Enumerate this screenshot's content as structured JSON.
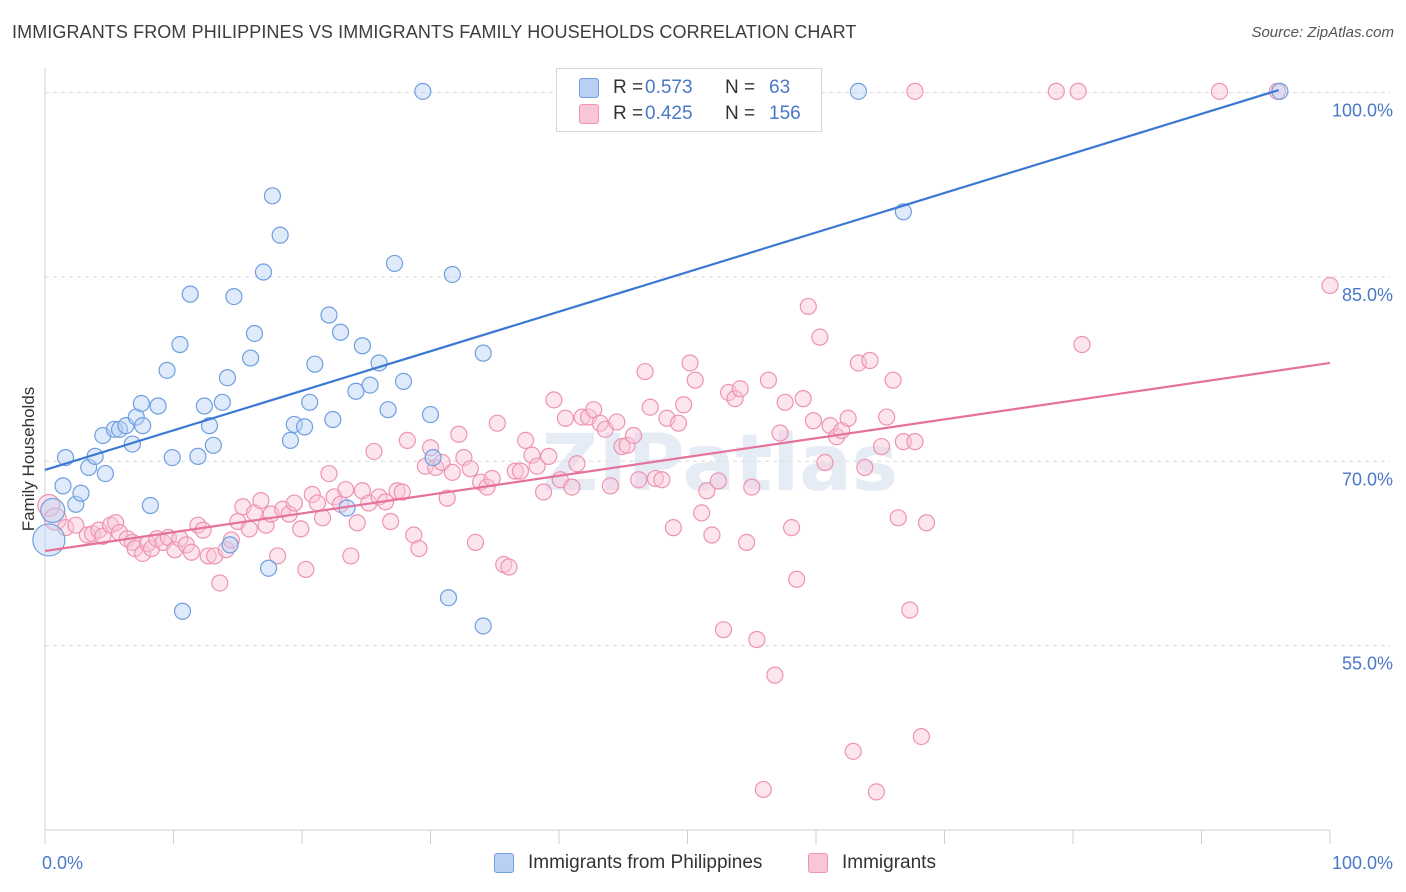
{
  "title": "IMMIGRANTS FROM PHILIPPINES VS IMMIGRANTS FAMILY HOUSEHOLDS CORRELATION CHART",
  "source": "Source: ZipAtlas.com",
  "watermark": "ZIPatlas",
  "colors": {
    "blue_fill": "#b8d0f3",
    "blue_stroke": "#6f9fe0",
    "blue_line": "#3a78d2",
    "pink_fill": "#f8c6d6",
    "pink_stroke": "#ee93b1",
    "pink_line": "#e5729a",
    "axis_label": "#4a78c8"
  },
  "legend_top": [
    {
      "r_label": "R =",
      "r_value": "0.573",
      "n_label": "N =",
      "n_value": "63"
    },
    {
      "r_label": "R =",
      "r_value": "0.425",
      "n_label": "N =",
      "n_value": "156"
    }
  ],
  "chart_data": {
    "type": "scatter",
    "xlabel": "",
    "ylabel": "Family Households",
    "xlim": [
      0,
      100
    ],
    "ylim": [
      40,
      102
    ],
    "x_tick_labels": [
      "0.0%",
      "100.0%"
    ],
    "y_ticks": [
      55,
      70,
      85,
      100
    ],
    "y_tick_labels": [
      "55.0%",
      "70.0%",
      "85.0%",
      "100.0%"
    ],
    "legend_position": "bottom-center",
    "series": [
      {
        "name": "Immigrants from Philippines",
        "color": "#6f9fe0",
        "trend": {
          "x": [
            0,
            96
          ],
          "y": [
            69.3,
            100.2
          ]
        },
        "points": [
          [
            0.3,
            63.6,
            16
          ],
          [
            0.6,
            66.0,
            12
          ],
          [
            1.4,
            68.0,
            8
          ],
          [
            1.6,
            70.3,
            8
          ],
          [
            2.4,
            66.5,
            8
          ],
          [
            2.8,
            67.4,
            8
          ],
          [
            3.4,
            69.5,
            8
          ],
          [
            3.9,
            70.4,
            8
          ],
          [
            4.7,
            69.0,
            8
          ],
          [
            4.5,
            72.1,
            8
          ],
          [
            5.4,
            72.6,
            8
          ],
          [
            5.8,
            72.6,
            8
          ],
          [
            6.3,
            72.9,
            8
          ],
          [
            6.8,
            71.4,
            8
          ],
          [
            7.1,
            73.6,
            8
          ],
          [
            7.6,
            72.9,
            8
          ],
          [
            8.2,
            66.4,
            8
          ],
          [
            8.8,
            74.5,
            8
          ],
          [
            7.5,
            74.7,
            8
          ],
          [
            9.5,
            77.4,
            8
          ],
          [
            9.9,
            70.3,
            8
          ],
          [
            10.5,
            79.5,
            8
          ],
          [
            10.7,
            57.8,
            8
          ],
          [
            11.3,
            83.6,
            8
          ],
          [
            11.9,
            70.4,
            8
          ],
          [
            12.4,
            74.5,
            8
          ],
          [
            12.8,
            72.9,
            8
          ],
          [
            13.1,
            71.3,
            8
          ],
          [
            13.8,
            74.8,
            8
          ],
          [
            14.2,
            76.8,
            8
          ],
          [
            14.4,
            63.2,
            8
          ],
          [
            14.7,
            83.4,
            8
          ],
          [
            16.0,
            78.4,
            8
          ],
          [
            16.3,
            80.4,
            8
          ],
          [
            17.0,
            85.4,
            8
          ],
          [
            17.4,
            61.3,
            8
          ],
          [
            17.7,
            91.6,
            8
          ],
          [
            18.3,
            88.4,
            8
          ],
          [
            19.1,
            71.7,
            8
          ],
          [
            19.4,
            73.0,
            8
          ],
          [
            20.2,
            72.8,
            8
          ],
          [
            20.6,
            74.8,
            8
          ],
          [
            21.0,
            77.9,
            8
          ],
          [
            22.1,
            81.9,
            8
          ],
          [
            22.4,
            73.4,
            8
          ],
          [
            23.0,
            80.5,
            8
          ],
          [
            23.5,
            66.2,
            8
          ],
          [
            24.2,
            75.7,
            8
          ],
          [
            24.7,
            79.4,
            8
          ],
          [
            25.3,
            76.2,
            8
          ],
          [
            26.0,
            78.0,
            8
          ],
          [
            26.7,
            74.2,
            8
          ],
          [
            27.2,
            86.1,
            8
          ],
          [
            27.9,
            76.5,
            8
          ],
          [
            29.4,
            100.1,
            8
          ],
          [
            30.0,
            73.8,
            8
          ],
          [
            30.2,
            70.3,
            8
          ],
          [
            31.4,
            58.9,
            8
          ],
          [
            31.7,
            85.2,
            8
          ],
          [
            34.1,
            56.6,
            8
          ],
          [
            34.1,
            78.8,
            8
          ],
          [
            63.3,
            100.1,
            8
          ],
          [
            66.8,
            90.3,
            8
          ],
          [
            96.1,
            100.1,
            8
          ]
        ]
      },
      {
        "name": "Immigrants",
        "color": "#ee93b1",
        "trend": {
          "x": [
            0,
            100
          ],
          "y": [
            62.7,
            78.0
          ]
        },
        "points": [
          [
            0.3,
            66.4,
            11
          ],
          [
            0.8,
            65.3,
            11
          ],
          [
            1.6,
            64.6,
            8
          ],
          [
            2.4,
            64.8,
            8
          ],
          [
            3.3,
            64.0,
            8
          ],
          [
            3.7,
            64.1,
            8
          ],
          [
            4.2,
            64.4,
            8
          ],
          [
            4.5,
            63.9,
            8
          ],
          [
            5.1,
            64.8,
            8
          ],
          [
            5.5,
            65.0,
            8
          ],
          [
            5.8,
            64.2,
            8
          ],
          [
            6.4,
            63.7,
            8
          ],
          [
            6.8,
            63.4,
            8
          ],
          [
            7.0,
            62.9,
            8
          ],
          [
            7.6,
            62.5,
            8
          ],
          [
            8.0,
            63.3,
            8
          ],
          [
            8.3,
            62.9,
            8
          ],
          [
            8.7,
            63.7,
            8
          ],
          [
            9.2,
            63.4,
            8
          ],
          [
            9.6,
            63.8,
            8
          ],
          [
            10.1,
            62.8,
            8
          ],
          [
            10.5,
            63.7,
            8
          ],
          [
            11.0,
            63.2,
            8
          ],
          [
            11.4,
            62.6,
            8
          ],
          [
            11.9,
            64.8,
            8
          ],
          [
            12.3,
            64.4,
            8
          ],
          [
            12.7,
            62.3,
            8
          ],
          [
            13.2,
            62.3,
            8
          ],
          [
            13.6,
            60.1,
            8
          ],
          [
            14.1,
            62.8,
            8
          ],
          [
            14.5,
            63.6,
            8
          ],
          [
            15.0,
            65.1,
            8
          ],
          [
            15.4,
            66.3,
            8
          ],
          [
            15.9,
            64.5,
            8
          ],
          [
            16.3,
            65.8,
            8
          ],
          [
            16.8,
            66.8,
            8
          ],
          [
            17.2,
            64.8,
            8
          ],
          [
            17.6,
            65.7,
            8
          ],
          [
            18.1,
            62.3,
            8
          ],
          [
            18.5,
            66.1,
            8
          ],
          [
            19.0,
            65.7,
            8
          ],
          [
            19.4,
            66.6,
            8
          ],
          [
            19.9,
            64.5,
            8
          ],
          [
            20.3,
            61.2,
            8
          ],
          [
            20.8,
            67.3,
            8
          ],
          [
            21.2,
            66.6,
            8
          ],
          [
            21.6,
            65.4,
            8
          ],
          [
            22.1,
            69.0,
            8
          ],
          [
            22.5,
            67.1,
            8
          ],
          [
            23.0,
            66.5,
            8
          ],
          [
            23.4,
            67.7,
            8
          ],
          [
            23.8,
            62.3,
            8
          ],
          [
            24.3,
            65.0,
            8
          ],
          [
            24.7,
            67.6,
            8
          ],
          [
            25.2,
            66.6,
            8
          ],
          [
            25.6,
            70.8,
            8
          ],
          [
            26.0,
            67.1,
            8
          ],
          [
            26.5,
            66.7,
            8
          ],
          [
            26.9,
            65.1,
            8
          ],
          [
            27.4,
            67.6,
            8
          ],
          [
            27.8,
            67.5,
            8
          ],
          [
            28.2,
            71.7,
            8
          ],
          [
            28.7,
            64.0,
            8
          ],
          [
            29.1,
            62.9,
            8
          ],
          [
            29.6,
            69.6,
            8
          ],
          [
            30.0,
            71.1,
            8
          ],
          [
            30.4,
            69.5,
            8
          ],
          [
            30.9,
            69.9,
            8
          ],
          [
            31.3,
            67.0,
            8
          ],
          [
            31.7,
            69.1,
            8
          ],
          [
            32.2,
            72.2,
            8
          ],
          [
            32.6,
            70.3,
            8
          ],
          [
            33.1,
            69.4,
            8
          ],
          [
            33.5,
            63.4,
            8
          ],
          [
            33.9,
            68.3,
            8
          ],
          [
            34.4,
            67.9,
            8
          ],
          [
            34.8,
            68.6,
            8
          ],
          [
            35.2,
            73.1,
            8
          ],
          [
            35.7,
            61.6,
            8
          ],
          [
            36.1,
            61.4,
            8
          ],
          [
            36.6,
            69.2,
            8
          ],
          [
            37.0,
            69.2,
            8
          ],
          [
            37.4,
            71.7,
            8
          ],
          [
            37.9,
            70.5,
            8
          ],
          [
            38.3,
            69.6,
            8
          ],
          [
            38.8,
            67.5,
            8
          ],
          [
            39.2,
            70.4,
            8
          ],
          [
            39.6,
            75.0,
            8
          ],
          [
            40.1,
            68.5,
            8
          ],
          [
            40.5,
            73.5,
            8
          ],
          [
            41.0,
            67.9,
            8
          ],
          [
            41.4,
            69.8,
            8
          ],
          [
            41.8,
            73.6,
            8
          ],
          [
            42.3,
            73.6,
            8
          ],
          [
            42.7,
            74.2,
            8
          ],
          [
            43.2,
            73.1,
            8
          ],
          [
            43.6,
            72.6,
            8
          ],
          [
            44.0,
            68.0,
            8
          ],
          [
            44.5,
            73.2,
            8
          ],
          [
            44.9,
            71.2,
            8
          ],
          [
            45.3,
            71.3,
            8
          ],
          [
            45.8,
            72.1,
            8
          ],
          [
            46.2,
            68.5,
            8
          ],
          [
            46.7,
            77.3,
            8
          ],
          [
            47.1,
            74.4,
            8
          ],
          [
            47.5,
            68.6,
            8
          ],
          [
            48.0,
            68.5,
            8
          ],
          [
            48.4,
            73.5,
            8
          ],
          [
            48.9,
            64.6,
            8
          ],
          [
            49.3,
            73.1,
            8
          ],
          [
            49.7,
            74.6,
            8
          ],
          [
            50.2,
            78.0,
            8
          ],
          [
            50.6,
            76.6,
            8
          ],
          [
            51.1,
            65.8,
            8
          ],
          [
            51.5,
            67.6,
            8
          ],
          [
            51.9,
            64.0,
            8
          ],
          [
            52.4,
            68.4,
            8
          ],
          [
            52.8,
            56.3,
            8
          ],
          [
            53.2,
            75.6,
            8
          ],
          [
            53.7,
            75.1,
            8
          ],
          [
            54.1,
            75.9,
            8
          ],
          [
            54.6,
            63.4,
            8
          ],
          [
            55.0,
            67.9,
            8
          ],
          [
            55.4,
            55.5,
            8
          ],
          [
            55.9,
            43.3,
            8
          ],
          [
            56.3,
            76.6,
            8
          ],
          [
            56.8,
            52.6,
            8
          ],
          [
            57.2,
            72.3,
            8
          ],
          [
            57.6,
            74.8,
            8
          ],
          [
            58.1,
            64.6,
            8
          ],
          [
            58.5,
            60.4,
            8
          ],
          [
            59.0,
            75.1,
            8
          ],
          [
            59.4,
            82.6,
            8
          ],
          [
            59.8,
            73.3,
            8
          ],
          [
            60.3,
            80.1,
            8
          ],
          [
            60.7,
            69.9,
            8
          ],
          [
            61.1,
            72.9,
            8
          ],
          [
            61.6,
            72.0,
            8
          ],
          [
            62.0,
            72.5,
            8
          ],
          [
            62.5,
            73.5,
            8
          ],
          [
            62.9,
            46.4,
            8
          ],
          [
            63.3,
            78.0,
            8
          ],
          [
            63.8,
            69.5,
            8
          ],
          [
            64.2,
            78.2,
            8
          ],
          [
            64.7,
            43.1,
            8
          ],
          [
            65.1,
            71.2,
            8
          ],
          [
            65.5,
            73.6,
            8
          ],
          [
            66.0,
            76.6,
            8
          ],
          [
            66.4,
            65.4,
            8
          ],
          [
            66.8,
            71.6,
            8
          ],
          [
            67.3,
            57.9,
            8
          ],
          [
            67.7,
            71.6,
            8
          ],
          [
            68.2,
            47.6,
            8
          ],
          [
            68.6,
            65.0,
            8
          ],
          [
            80.7,
            79.5,
            8
          ],
          [
            67.7,
            100.1,
            8
          ],
          [
            78.7,
            100.1,
            8
          ],
          [
            80.4,
            100.1,
            8
          ],
          [
            91.4,
            100.1,
            8
          ],
          [
            95.9,
            100.1,
            8
          ],
          [
            100.0,
            84.3,
            8
          ]
        ]
      }
    ]
  },
  "legend_bottom": [
    {
      "label": "Immigrants from Philippines"
    },
    {
      "label": "Immigrants"
    }
  ]
}
